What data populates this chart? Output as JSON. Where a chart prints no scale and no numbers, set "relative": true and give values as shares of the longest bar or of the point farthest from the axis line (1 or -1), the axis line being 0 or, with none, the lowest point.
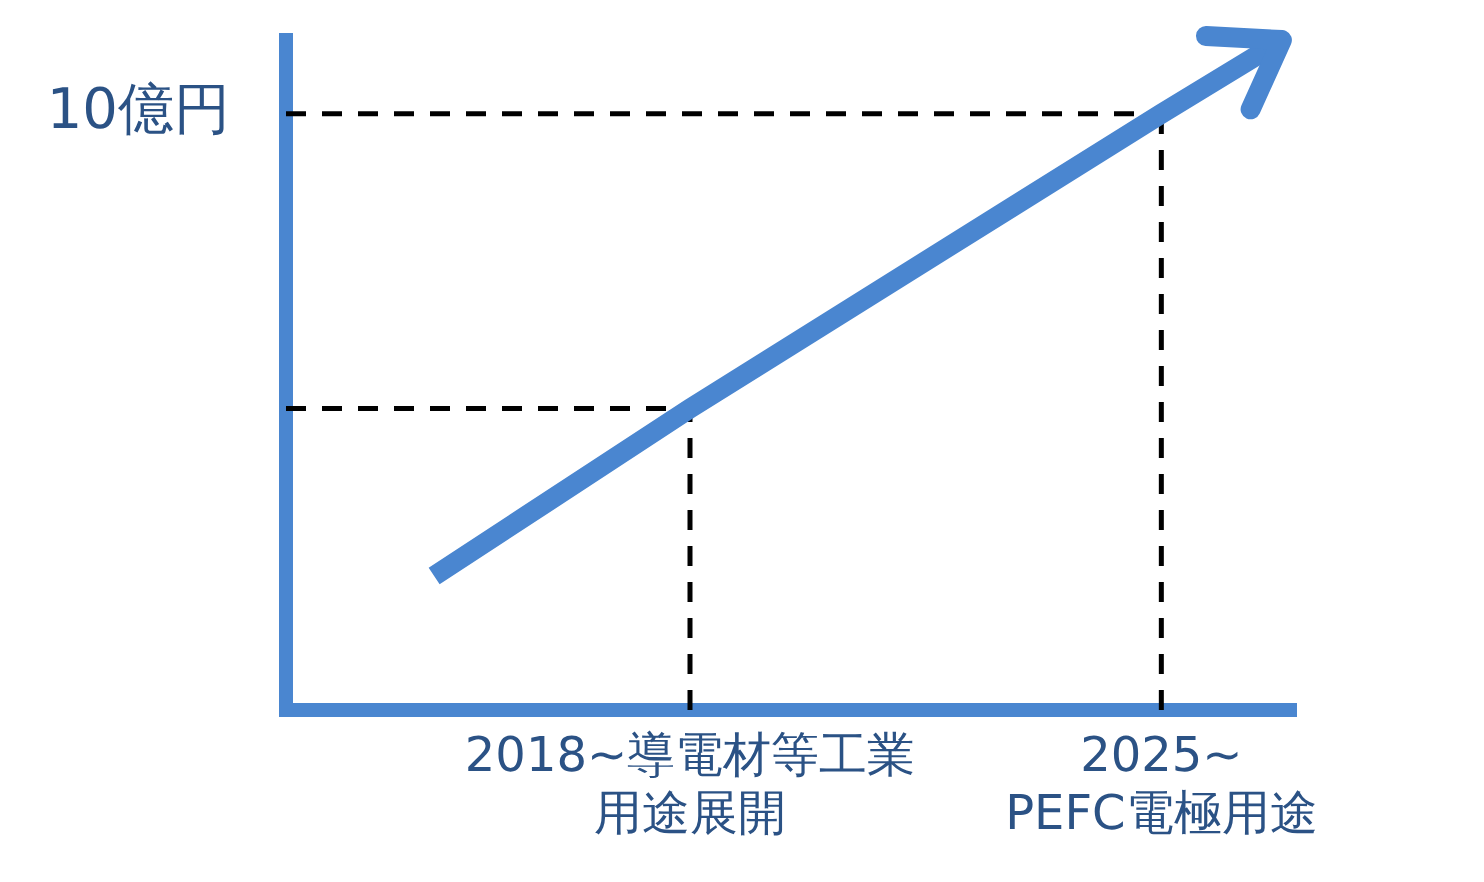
{
  "chart_data": {
    "type": "line",
    "relative": true,
    "x": [
      2014.2,
      2018,
      2025,
      2026.8
    ],
    "xlim": [
      2012,
      2027
    ],
    "xticks": [
      {
        "value": 2018,
        "label": "2018~導電材等工業用途展開"
      },
      {
        "value": 2025,
        "label": "2025~ PEFC電極用途"
      }
    ],
    "series": [
      {
        "color": "#4a86d0",
        "values": [
          0.2,
          0.45,
          0.89,
          1
        ]
      }
    ],
    "marker": "none",
    "grid": false,
    "legend": false,
    "ref_lines": [
      {
        "axis": "y",
        "value": 0.89,
        "label": "10億円",
        "color": "#000000",
        "line_style": "dashed"
      },
      {
        "axis": "y",
        "value": 0.45,
        "color": "#000000",
        "line_style": "dashed"
      },
      {
        "axis": "x",
        "value": 2018,
        "color": "#000000",
        "line_style": "dashed"
      },
      {
        "axis": "x",
        "value": 2025,
        "color": "#000000",
        "line_style": "dashed"
      }
    ]
  }
}
